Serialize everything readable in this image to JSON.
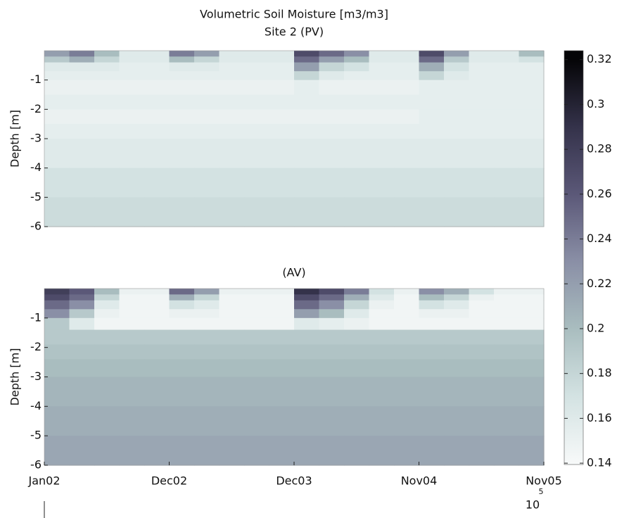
{
  "chart_data": [
    {
      "type": "heatmap",
      "title": "Volumetric Soil Moisture [m3/m3]",
      "subtitle": "Site 2 (PV)",
      "y_label": "Depth [m]",
      "xlim": [
        0,
        4
      ],
      "ylim": [
        -6,
        0
      ],
      "yticks": [
        -1,
        -2,
        -3,
        -4,
        -5,
        -6
      ],
      "x_edges": [
        0,
        0.2,
        0.4,
        0.6,
        0.8,
        1,
        1.2,
        1.4,
        1.6,
        1.8,
        2,
        2.2,
        2.4,
        2.6,
        2.8,
        3,
        3.2,
        3.4,
        3.6,
        3.8,
        4
      ],
      "depth_edges": [
        0,
        -0.2,
        -0.4,
        -0.7,
        -1,
        -1.5,
        -2,
        -2.5,
        -3,
        -4,
        -5,
        -6
      ],
      "z": [
        [
          0.22,
          0.24,
          0.2,
          0.16,
          0.16,
          0.24,
          0.22,
          0.16,
          0.16,
          0.16,
          0.27,
          0.25,
          0.23,
          0.16,
          0.16,
          0.27,
          0.22,
          0.16,
          0.16,
          0.2
        ],
        [
          0.19,
          0.21,
          0.18,
          0.16,
          0.16,
          0.2,
          0.18,
          0.16,
          0.16,
          0.16,
          0.25,
          0.22,
          0.2,
          0.16,
          0.16,
          0.25,
          0.19,
          0.16,
          0.16,
          0.17
        ],
        [
          0.16,
          0.16,
          0.16,
          0.155,
          0.155,
          0.16,
          0.16,
          0.155,
          0.155,
          0.155,
          0.22,
          0.18,
          0.17,
          0.155,
          0.155,
          0.21,
          0.17,
          0.155,
          0.155,
          0.155
        ],
        [
          0.155,
          0.155,
          0.155,
          0.155,
          0.155,
          0.155,
          0.155,
          0.155,
          0.155,
          0.155,
          0.18,
          0.16,
          0.155,
          0.155,
          0.155,
          0.18,
          0.16,
          0.155,
          0.155,
          0.155
        ],
        [
          0.15,
          0.15,
          0.15,
          0.15,
          0.15,
          0.15,
          0.15,
          0.15,
          0.15,
          0.15,
          0.155,
          0.15,
          0.15,
          0.15,
          0.15,
          0.155,
          0.155,
          0.155,
          0.155,
          0.155
        ],
        [
          0.155,
          0.155,
          0.155,
          0.155,
          0.155,
          0.155,
          0.155,
          0.155,
          0.155,
          0.155,
          0.155,
          0.155,
          0.155,
          0.155,
          0.155,
          0.155,
          0.155,
          0.155,
          0.155,
          0.155
        ],
        [
          0.15,
          0.15,
          0.15,
          0.15,
          0.15,
          0.15,
          0.15,
          0.15,
          0.15,
          0.15,
          0.15,
          0.15,
          0.15,
          0.15,
          0.15,
          0.155,
          0.155,
          0.155,
          0.155,
          0.155
        ],
        [
          0.155,
          0.155,
          0.155,
          0.155,
          0.155,
          0.155,
          0.155,
          0.155,
          0.155,
          0.155,
          0.155,
          0.155,
          0.155,
          0.155,
          0.155,
          0.155,
          0.155,
          0.155,
          0.155,
          0.155
        ],
        [
          0.16,
          0.16,
          0.16,
          0.16,
          0.16,
          0.16,
          0.16,
          0.16,
          0.16,
          0.16,
          0.16,
          0.16,
          0.16,
          0.16,
          0.16,
          0.16,
          0.16,
          0.16,
          0.16,
          0.16
        ],
        [
          0.17,
          0.17,
          0.17,
          0.17,
          0.17,
          0.17,
          0.17,
          0.17,
          0.17,
          0.17,
          0.17,
          0.17,
          0.17,
          0.17,
          0.17,
          0.17,
          0.17,
          0.17,
          0.17,
          0.17
        ],
        [
          0.175,
          0.175,
          0.175,
          0.175,
          0.175,
          0.175,
          0.175,
          0.175,
          0.175,
          0.175,
          0.175,
          0.175,
          0.175,
          0.175,
          0.175,
          0.175,
          0.175,
          0.175,
          0.175,
          0.175
        ]
      ]
    },
    {
      "type": "heatmap",
      "title": "(AV)",
      "y_label": "Depth [m]",
      "xlim": [
        0,
        4
      ],
      "ylim": [
        -6,
        0
      ],
      "yticks": [
        -1,
        -2,
        -3,
        -4,
        -5,
        -6
      ],
      "xticks": [
        {
          "value": 0,
          "label": "Jan02"
        },
        {
          "value": 1,
          "label": "Dec02"
        },
        {
          "value": 2,
          "label": "Dec03"
        },
        {
          "value": 3,
          "label": "Nov04"
        },
        {
          "value": 4,
          "label": "Nov05"
        }
      ],
      "x_exponent": {
        "base": "10",
        "power": "5"
      },
      "x_edges": [
        0,
        0.2,
        0.4,
        0.6,
        0.8,
        1,
        1.2,
        1.4,
        1.6,
        1.8,
        2,
        2.2,
        2.4,
        2.6,
        2.8,
        3,
        3.2,
        3.4,
        3.6,
        3.8,
        4
      ],
      "depth_edges": [
        0,
        -0.2,
        -0.4,
        -0.7,
        -1,
        -1.4,
        -1.9,
        -2.4,
        -3,
        -4,
        -5,
        -6
      ],
      "z": [
        [
          0.28,
          0.26,
          0.2,
          0.15,
          0.15,
          0.25,
          0.22,
          0.15,
          0.15,
          0.15,
          0.29,
          0.27,
          0.24,
          0.17,
          0.15,
          0.23,
          0.21,
          0.17,
          0.15,
          0.15
        ],
        [
          0.27,
          0.25,
          0.18,
          0.145,
          0.145,
          0.21,
          0.18,
          0.145,
          0.145,
          0.145,
          0.27,
          0.25,
          0.21,
          0.16,
          0.145,
          0.2,
          0.18,
          0.15,
          0.145,
          0.145
        ],
        [
          0.25,
          0.23,
          0.16,
          0.145,
          0.145,
          0.17,
          0.16,
          0.145,
          0.145,
          0.145,
          0.25,
          0.23,
          0.18,
          0.15,
          0.145,
          0.17,
          0.16,
          0.145,
          0.145,
          0.145
        ],
        [
          0.23,
          0.19,
          0.15,
          0.145,
          0.145,
          0.15,
          0.15,
          0.145,
          0.145,
          0.145,
          0.22,
          0.2,
          0.16,
          0.145,
          0.145,
          0.15,
          0.15,
          0.145,
          0.145,
          0.145
        ],
        [
          0.19,
          0.16,
          0.145,
          0.145,
          0.145,
          0.145,
          0.145,
          0.145,
          0.145,
          0.145,
          0.16,
          0.155,
          0.15,
          0.145,
          0.145,
          0.145,
          0.145,
          0.145,
          0.145,
          0.145
        ],
        [
          0.19,
          0.19,
          0.19,
          0.19,
          0.19,
          0.19,
          0.19,
          0.19,
          0.19,
          0.19,
          0.19,
          0.19,
          0.19,
          0.19,
          0.19,
          0.19,
          0.19,
          0.19,
          0.19,
          0.19
        ],
        [
          0.195,
          0.195,
          0.195,
          0.195,
          0.195,
          0.195,
          0.195,
          0.195,
          0.195,
          0.195,
          0.195,
          0.195,
          0.195,
          0.195,
          0.195,
          0.195,
          0.195,
          0.195,
          0.195,
          0.195
        ],
        [
          0.2,
          0.2,
          0.2,
          0.2,
          0.2,
          0.2,
          0.2,
          0.2,
          0.2,
          0.2,
          0.2,
          0.2,
          0.2,
          0.2,
          0.2,
          0.2,
          0.2,
          0.2,
          0.2,
          0.2
        ],
        [
          0.205,
          0.205,
          0.205,
          0.205,
          0.205,
          0.205,
          0.205,
          0.205,
          0.205,
          0.205,
          0.205,
          0.205,
          0.205,
          0.205,
          0.205,
          0.205,
          0.205,
          0.205,
          0.205,
          0.205
        ],
        [
          0.21,
          0.21,
          0.21,
          0.21,
          0.21,
          0.21,
          0.21,
          0.21,
          0.21,
          0.21,
          0.21,
          0.21,
          0.21,
          0.21,
          0.21,
          0.21,
          0.21,
          0.21,
          0.21,
          0.21
        ],
        [
          0.215,
          0.215,
          0.215,
          0.215,
          0.215,
          0.215,
          0.215,
          0.215,
          0.215,
          0.215,
          0.215,
          0.215,
          0.215,
          0.215,
          0.215,
          0.215,
          0.215,
          0.215,
          0.215,
          0.215
        ]
      ]
    }
  ],
  "colorbar": {
    "clim": [
      0.1394,
      0.324
    ],
    "ticks": [
      0.14,
      0.16,
      0.18,
      0.2,
      0.22,
      0.24,
      0.26,
      0.28,
      0.3,
      0.32
    ],
    "colormap": [
      {
        "value": 0.14,
        "color": "#f7f9f9"
      },
      {
        "value": 0.17,
        "color": "#d3e2e2"
      },
      {
        "value": 0.2,
        "color": "#a9bdbf"
      },
      {
        "value": 0.23,
        "color": "#8a8fa6"
      },
      {
        "value": 0.26,
        "color": "#5b5878"
      },
      {
        "value": 0.29,
        "color": "#34324a"
      },
      {
        "value": 0.32,
        "color": "#050507"
      }
    ]
  }
}
